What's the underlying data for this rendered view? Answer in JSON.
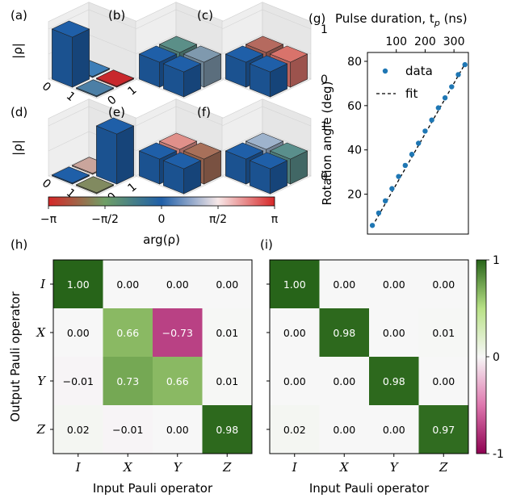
{
  "colors": {
    "accent_blue": "#1f77b4",
    "cmap_twilight": [
      "#d62728",
      "#6f9f66",
      "#1f5fa8",
      "#f7e8e8",
      "#d62728"
    ],
    "cmap_piyg": [
      "#8e0152",
      "#de77ae",
      "#f7f7f7",
      "#b8e186",
      "#276419"
    ]
  },
  "chart_data": [
    {
      "type": "bar3d",
      "panel": "(a)",
      "zlabel": "|ρ|",
      "row_ticks": [
        "0",
        "1"
      ],
      "col_ticks": [
        "0",
        "1"
      ],
      "zticks": [
        "0",
        "1"
      ],
      "matrix_magnitude": [
        [
          1,
          0
        ],
        [
          0,
          0
        ]
      ],
      "colors": [
        "#1f5fa8",
        "#3d7eb8",
        "#4c7fa6",
        "#c8282c"
      ]
    },
    {
      "type": "bar3d",
      "panel": "(b)",
      "matrix_magnitude": [
        [
          0.5,
          0.5
        ],
        [
          0.5,
          0.5
        ]
      ],
      "colors": [
        "#1f5fa8",
        "#5b8f88",
        "#1f5fa8",
        "#7f99ae"
      ]
    },
    {
      "type": "bar3d",
      "panel": "(c)",
      "zticks": [
        "0",
        "1"
      ],
      "matrix_magnitude": [
        [
          0.5,
          0.5
        ],
        [
          0.5,
          0.5
        ]
      ],
      "colors": [
        "#1f5fa8",
        "#b56a5f",
        "#1f5fa8",
        "#d9736b"
      ]
    },
    {
      "type": "bar3d",
      "panel": "(d)",
      "zlabel": "|ρ|",
      "row_ticks": [
        "0",
        "1"
      ],
      "col_ticks": [
        "0",
        "1"
      ],
      "zticks": [
        "0",
        "1"
      ],
      "matrix_magnitude": [
        [
          0,
          0
        ],
        [
          0,
          1
        ]
      ],
      "colors": [
        "#1f5fa8",
        "#caa59c",
        "#818a60",
        "#1f5fa8"
      ]
    },
    {
      "type": "bar3d",
      "panel": "(e)",
      "matrix_magnitude": [
        [
          0.5,
          0.5
        ],
        [
          0.5,
          0.5
        ]
      ],
      "colors": [
        "#1f5fa8",
        "#e0908a",
        "#1f5fa8",
        "#a8705a"
      ]
    },
    {
      "type": "bar3d",
      "panel": "(f)",
      "zticks": [
        "0",
        "1"
      ],
      "matrix_magnitude": [
        [
          0.5,
          0.5
        ],
        [
          0.5,
          0.5
        ]
      ],
      "colors": [
        "#1f5fa8",
        "#9eb3cc",
        "#1f5fa8",
        "#5a8f8c"
      ]
    },
    {
      "type": "colorbar",
      "label": "arg(ρ)",
      "ticks": [
        "−π",
        "−π/2",
        "0",
        "π/2",
        "π"
      ],
      "range": [
        -3.14159,
        3.14159
      ]
    },
    {
      "type": "scatter",
      "panel": "(g)",
      "xlabel_top": "Pulse duration, t",
      "xlabel_top_sub": "p",
      "xlabel_top_unit": " (ns)",
      "ylabel": "Rotation angle (deg)",
      "xticks_top": [
        100,
        200,
        300
      ],
      "yticks": [
        20,
        40,
        60,
        80
      ],
      "xlim": [
        0,
        350
      ],
      "ylim": [
        2,
        84
      ],
      "series": [
        {
          "name": "data",
          "x": [
            17,
            39,
            62,
            85,
            108,
            131,
            154,
            177,
            200,
            223,
            246,
            269,
            292,
            315,
            338
          ],
          "y": [
            5.9,
            11.5,
            17,
            22.5,
            28,
            33,
            38,
            43,
            48.5,
            53.5,
            59,
            63.5,
            68.5,
            74,
            78.5
          ]
        },
        {
          "name": "fit",
          "x": [
            17,
            338
          ],
          "y": [
            5.5,
            78.8
          ]
        }
      ]
    },
    {
      "type": "heatmap",
      "panel": "(h)",
      "xlabel": "Input Pauli operator",
      "ylabel": "Output Pauli operator",
      "x_categories": [
        "I",
        "X",
        "Y",
        "Z"
      ],
      "y_categories": [
        "I",
        "X",
        "Y",
        "Z"
      ],
      "values": [
        [
          1.0,
          0.0,
          0.0,
          0.0
        ],
        [
          0.0,
          0.66,
          -0.73,
          0.01
        ],
        [
          -0.01,
          0.73,
          0.66,
          0.01
        ],
        [
          0.02,
          -0.01,
          0.0,
          0.98
        ]
      ],
      "labels": [
        [
          "1.00",
          "0.00",
          "0.00",
          "0.00"
        ],
        [
          "0.00",
          "0.66",
          "−0.73",
          "0.01"
        ],
        [
          "−0.01",
          "0.73",
          "0.66",
          "0.01"
        ],
        [
          "0.02",
          "−0.01",
          "0.00",
          "0.98"
        ]
      ]
    },
    {
      "type": "heatmap",
      "panel": "(i)",
      "xlabel": "Input Pauli operator",
      "x_categories": [
        "I",
        "X",
        "Y",
        "Z"
      ],
      "y_categories": [
        "I",
        "X",
        "Y",
        "Z"
      ],
      "values": [
        [
          1.0,
          0.0,
          0.0,
          0.0
        ],
        [
          0.0,
          0.98,
          0.0,
          0.01
        ],
        [
          0.0,
          0.0,
          0.98,
          0.0
        ],
        [
          0.02,
          0.0,
          0.0,
          0.97
        ]
      ],
      "labels": [
        [
          "1.00",
          "0.00",
          "0.00",
          "0.00"
        ],
        [
          "0.00",
          "0.98",
          "0.00",
          "0.01"
        ],
        [
          "0.00",
          "0.00",
          "0.98",
          "0.00"
        ],
        [
          "0.02",
          "0.00",
          "0.00",
          "0.97"
        ]
      ]
    },
    {
      "type": "colorbar",
      "ticks": [
        "1",
        "0",
        "-1"
      ],
      "range": [
        -1,
        1
      ]
    }
  ]
}
